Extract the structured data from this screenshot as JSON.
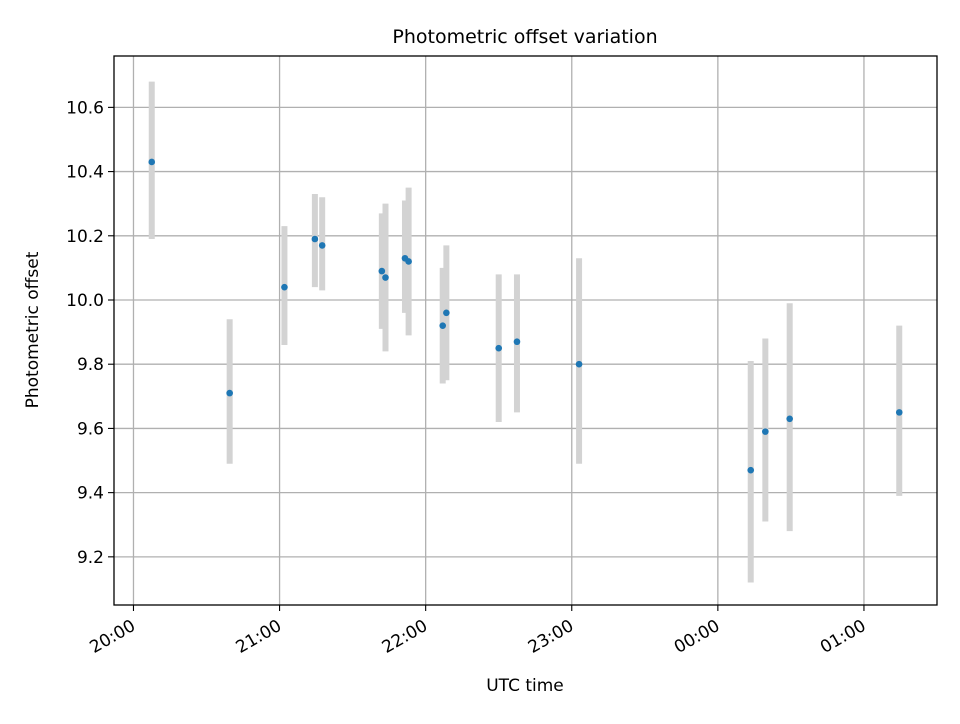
{
  "chart_data": {
    "type": "scatter",
    "title": "Photometric offset variation",
    "xlabel": "UTC time",
    "ylabel": "Photometric offset",
    "x_is_time": true,
    "xlim": [
      "19:52",
      "01:30"
    ],
    "ylim": [
      9.05,
      10.76
    ],
    "x_ticks": [
      "20:00",
      "21:00",
      "22:00",
      "23:00",
      "00:00",
      "01:00"
    ],
    "y_ticks": [
      "9.2",
      "9.4",
      "9.6",
      "9.8",
      "10.0",
      "10.2",
      "10.4",
      "10.6"
    ],
    "grid": true,
    "errorbar_color": "#d3d3d3",
    "marker_color": "#1f77b4",
    "points": [
      {
        "t": "20:07:30",
        "y": 10.43,
        "err_low": 10.19,
        "err_high": 10.68
      },
      {
        "t": "20:39:30",
        "y": 9.71,
        "err_low": 9.49,
        "err_high": 9.94
      },
      {
        "t": "21:02:00",
        "y": 10.04,
        "err_low": 9.86,
        "err_high": 10.23
      },
      {
        "t": "21:14:30",
        "y": 10.19,
        "err_low": 10.04,
        "err_high": 10.33
      },
      {
        "t": "21:17:30",
        "y": 10.17,
        "err_low": 10.03,
        "err_high": 10.32
      },
      {
        "t": "21:42:00",
        "y": 10.09,
        "err_low": 9.91,
        "err_high": 10.27
      },
      {
        "t": "21:43:30",
        "y": 10.07,
        "err_low": 9.84,
        "err_high": 10.3
      },
      {
        "t": "21:51:30",
        "y": 10.13,
        "err_low": 9.96,
        "err_high": 10.31
      },
      {
        "t": "21:53:00",
        "y": 10.12,
        "err_low": 9.89,
        "err_high": 10.35
      },
      {
        "t": "22:07:00",
        "y": 9.92,
        "err_low": 9.74,
        "err_high": 10.1
      },
      {
        "t": "22:08:30",
        "y": 9.96,
        "err_low": 9.75,
        "err_high": 10.17
      },
      {
        "t": "22:30:00",
        "y": 9.85,
        "err_low": 9.62,
        "err_high": 10.08
      },
      {
        "t": "22:37:30",
        "y": 9.87,
        "err_low": 9.65,
        "err_high": 10.08
      },
      {
        "t": "23:03:00",
        "y": 9.8,
        "err_low": 9.49,
        "err_high": 10.13
      },
      {
        "t": "00:13:30",
        "y": 9.47,
        "err_low": 9.12,
        "err_high": 9.81
      },
      {
        "t": "00:19:30",
        "y": 9.59,
        "err_low": 9.31,
        "err_high": 9.88
      },
      {
        "t": "00:29:30",
        "y": 9.63,
        "err_low": 9.28,
        "err_high": 9.99
      },
      {
        "t": "01:14:30",
        "y": 9.65,
        "err_low": 9.39,
        "err_high": 9.92
      }
    ]
  }
}
